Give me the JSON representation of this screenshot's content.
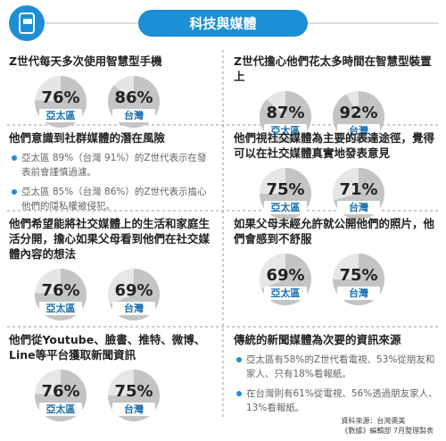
{
  "header": {
    "title": "科技與媒體"
  },
  "sections": [
    {
      "title": "Z世代每天多次使用智慧型手機",
      "stats": [
        {
          "region": "亞太區",
          "percent": {
            "value": 76,
            "label": "76%"
          }
        },
        {
          "region": "台灣",
          "percent": {
            "value": 86,
            "label": "86%"
          }
        }
      ]
    },
    {
      "title": "Z世代擔心他們花太多時間在智慧型裝置上",
      "stats": [
        {
          "region": "亞太區",
          "percent": {
            "value": 87,
            "label": "87%"
          }
        },
        {
          "region": "台灣",
          "percent": {
            "value": 92,
            "label": "92%"
          }
        }
      ]
    },
    {
      "title": "他們意識到社群媒體的潛在風險",
      "bullets": [
        "亞太區 89%（台灣 91%）的Z世代表示在發表前會謹慎過濾。",
        "亞太區 85%（台灣 86%）的Z世代表示擔心他們的隱私權被侵犯。"
      ]
    },
    {
      "title": "他們視社交媒體為主要的表達途徑，覺得可以在社交媒體真實地發表意見",
      "stats": [
        {
          "region": "亞太區",
          "percent": {
            "value": 75,
            "label": "75%"
          }
        },
        {
          "region": "台灣",
          "percent": {
            "value": 71,
            "label": "71%"
          }
        }
      ]
    },
    {
      "title": "他們希望能將社交媒體上的生活和家庭生活分開，擔心如果父母看到他們在社交媒體內容的想法",
      "stats": [
        {
          "region": "亞太區",
          "percent": {
            "value": 76,
            "label": "76%"
          }
        },
        {
          "region": "台灣",
          "percent": {
            "value": 69,
            "label": "69%"
          }
        }
      ]
    },
    {
      "title": "如果父母未經允許就公開他們的照片，他們會感到不舒服",
      "stats": [
        {
          "region": "亞太區",
          "percent": {
            "value": 69,
            "label": "69%"
          }
        },
        {
          "region": "台灣",
          "percent": {
            "value": 75,
            "label": "75%"
          }
        }
      ]
    },
    {
      "title": "他們從Youtube、臉書、推特、微博、Line等平台獲取新聞資訊",
      "stats": [
        {
          "region": "亞太區",
          "percent": {
            "value": 76,
            "label": "76%"
          }
        },
        {
          "region": "台灣",
          "percent": {
            "value": 75,
            "label": "75%"
          }
        }
      ]
    },
    {
      "title": "傳統的新聞媒體為次要的資訊來源",
      "bullets": [
        "亞太區有58%的Z世代看電視、53%從朋友和家人、只有18%看報紙。",
        "在台灣則有61%從電視、56%透過朋友家人、13%看報紙。"
      ]
    }
  ],
  "footer": {
    "source": "資料來源：台灣奧美",
    "credit": "《數據》編輯部 7月整理製表"
  }
}
